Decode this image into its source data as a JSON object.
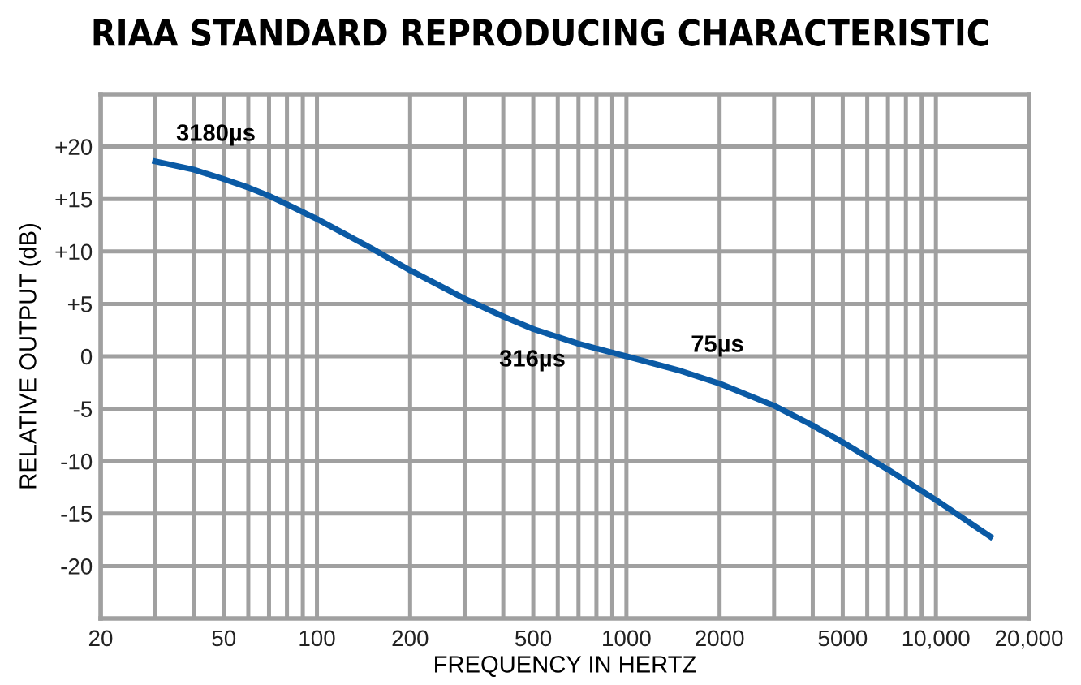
{
  "chart_data": {
    "type": "line",
    "title": "RIAA STANDARD REPRODUCING CHARACTERISTIC",
    "xlabel": "FREQUENCY IN HERTZ",
    "ylabel": "RELATIVE OUTPUT (dB)",
    "log": "x",
    "series": [
      {
        "color": "#0a5aa5",
        "x": [
          30,
          40,
          50,
          60,
          70,
          80,
          100,
          150,
          200,
          300,
          400,
          500,
          700,
          1000,
          1500,
          2000,
          3000,
          4000,
          5000,
          7000,
          10000,
          15000
        ],
        "values": [
          18.6,
          17.8,
          16.9,
          16.1,
          15.3,
          14.5,
          13.1,
          10.3,
          8.2,
          5.5,
          3.8,
          2.6,
          1.2,
          0,
          -1.4,
          -2.6,
          -4.7,
          -6.6,
          -8.2,
          -10.8,
          -13.7,
          -17.2
        ]
      }
    ],
    "xlim": [
      20,
      20000
    ],
    "xticks": [
      20,
      {
        "value": 30,
        "label": null
      },
      {
        "value": 40,
        "label": null
      },
      50,
      {
        "value": 60,
        "label": null
      },
      {
        "value": 70,
        "label": null
      },
      {
        "value": 80,
        "label": null
      },
      {
        "value": 90,
        "label": null
      },
      100,
      200,
      {
        "value": 300,
        "label": null
      },
      {
        "value": 400,
        "label": null
      },
      500,
      {
        "value": 600,
        "label": null
      },
      {
        "value": 700,
        "label": null
      },
      {
        "value": 800,
        "label": null
      },
      {
        "value": 900,
        "label": null
      },
      1000,
      2000,
      {
        "value": 3000,
        "label": null
      },
      {
        "value": 4000,
        "label": null
      },
      5000,
      {
        "value": 6000,
        "label": null
      },
      {
        "value": 7000,
        "label": null
      },
      {
        "value": 8000,
        "label": null
      },
      {
        "value": 9000,
        "label": null
      },
      {
        "value": 10000,
        "label": "10,000"
      },
      {
        "value": 20000,
        "label": "20,000"
      }
    ],
    "ylim": [
      -25,
      25
    ],
    "yticks": [
      -20,
      -15,
      -10,
      -5,
      0,
      {
        "value": 5,
        "label": "+5"
      },
      {
        "value": 10,
        "label": "+10"
      },
      {
        "value": 15,
        "label": "+15"
      },
      {
        "value": 20,
        "label": "+20"
      }
    ],
    "grid": true,
    "annotations": [
      "3180µs",
      "316µs",
      "75µs"
    ]
  }
}
